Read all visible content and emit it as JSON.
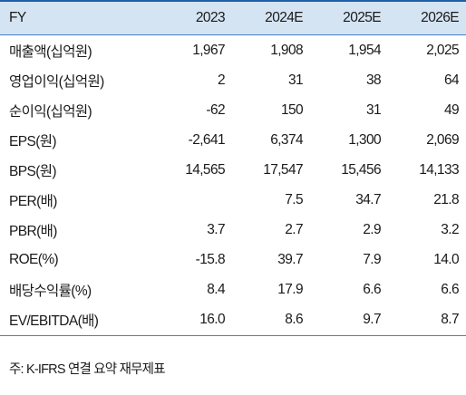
{
  "table": {
    "header": [
      "FY",
      "2023",
      "2024E",
      "2025E",
      "2026E"
    ],
    "rows": [
      [
        "매출액(십억원)",
        "1,967",
        "1,908",
        "1,954",
        "2,025"
      ],
      [
        "영업이익(십억원)",
        "2",
        "31",
        "38",
        "64"
      ],
      [
        "순이익(십억원)",
        "-62",
        "150",
        "31",
        "49"
      ],
      [
        "EPS(원)",
        "-2,641",
        "6,374",
        "1,300",
        "2,069"
      ],
      [
        "BPS(원)",
        "14,565",
        "17,547",
        "15,456",
        "14,133"
      ],
      [
        "PER(배)",
        "",
        "7.5",
        "34.7",
        "21.8"
      ],
      [
        "PBR(배)",
        "3.7",
        "2.7",
        "2.9",
        "3.2"
      ],
      [
        "ROE(%)",
        "-15.8",
        "39.7",
        "7.9",
        "14.0"
      ],
      [
        "배당수익률(%)",
        "8.4",
        "17.9",
        "6.6",
        "6.6"
      ],
      [
        "EV/EBITDA(배)",
        "16.0",
        "8.6",
        "9.7",
        "8.7"
      ]
    ]
  },
  "footnote": "주: K-IFRS 연결 요약 재무제표",
  "colors": {
    "header_background": "#d4e4f3",
    "rule": "#4a7fc1",
    "top_rule": "#1f5fa8",
    "text": "#1a1a1a"
  }
}
